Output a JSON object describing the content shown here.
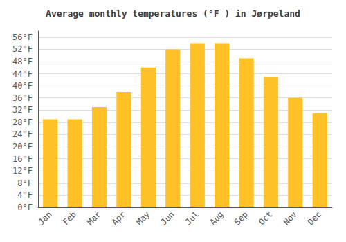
{
  "chart_data": {
    "type": "bar",
    "title": "Average monthly temperatures (°F ) in Jørpeland",
    "categories": [
      "Jan",
      "Feb",
      "Mar",
      "Apr",
      "May",
      "Jun",
      "Jul",
      "Aug",
      "Sep",
      "Oct",
      "Nov",
      "Dec"
    ],
    "values": [
      29,
      29,
      33,
      38,
      46,
      52,
      54,
      54,
      49,
      43,
      36,
      31
    ],
    "color": "#FFC125",
    "ylim": [
      0,
      58
    ],
    "yticks": [
      {
        "value": 0,
        "label": "0°F"
      },
      {
        "value": 4,
        "label": "4°F"
      },
      {
        "value": 8,
        "label": "8°F"
      },
      {
        "value": 12,
        "label": "12°F"
      },
      {
        "value": 16,
        "label": "16°F"
      },
      {
        "value": 20,
        "label": "20°F"
      },
      {
        "value": 24,
        "label": "24°F"
      },
      {
        "value": 28,
        "label": "28°F"
      },
      {
        "value": 32,
        "label": "32°F"
      },
      {
        "value": 36,
        "label": "36°F"
      },
      {
        "value": 40,
        "label": "40°F"
      },
      {
        "value": 44,
        "label": "44°F"
      },
      {
        "value": 48,
        "label": "48°F"
      },
      {
        "value": 52,
        "label": "52°F"
      },
      {
        "value": 56,
        "label": "56°F"
      }
    ],
    "grid": true
  }
}
